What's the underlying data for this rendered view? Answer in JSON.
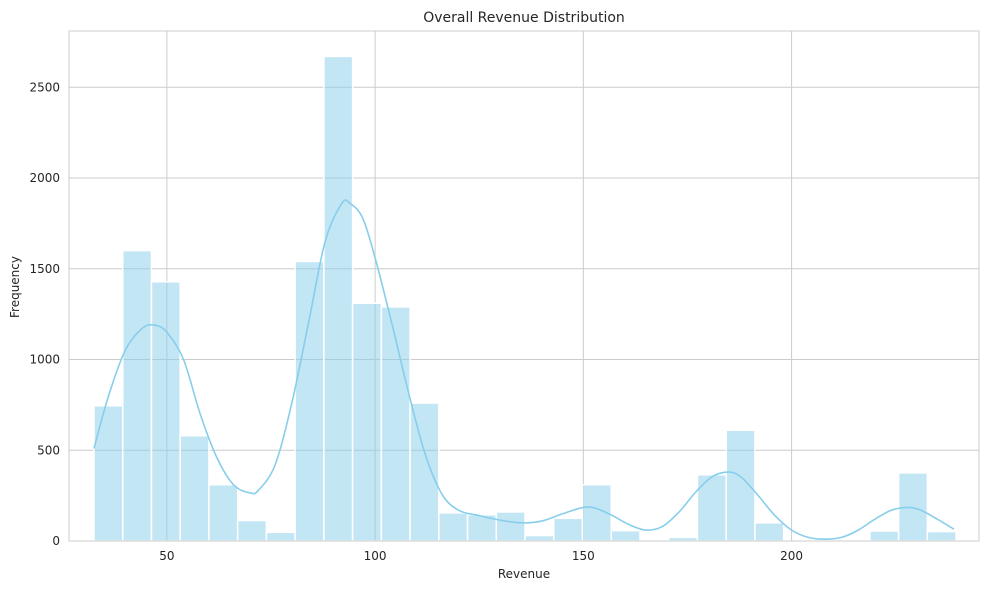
{
  "chart_data": {
    "type": "bar",
    "title": "Overall Revenue Distribution",
    "xlabel": "Revenue",
    "ylabel": "Frequency",
    "xlim": [
      26.5,
      245
    ],
    "ylim": [
      0,
      2810
    ],
    "xticks": [
      50,
      100,
      150,
      200
    ],
    "yticks": [
      0,
      500,
      1000,
      1500,
      2000,
      2500
    ],
    "grid": true,
    "bar_color": "#87CEEB",
    "bar_opacity": 0.5,
    "kde_color": "#87CEEB",
    "bins": [
      {
        "x0": 32.5,
        "x1": 39.4,
        "count": 745
      },
      {
        "x0": 39.4,
        "x1": 46.3,
        "count": 1600
      },
      {
        "x0": 46.3,
        "x1": 53.2,
        "count": 1428
      },
      {
        "x0": 53.2,
        "x1": 60.1,
        "count": 580
      },
      {
        "x0": 60.1,
        "x1": 67.0,
        "count": 310
      },
      {
        "x0": 67.0,
        "x1": 73.9,
        "count": 113
      },
      {
        "x0": 73.9,
        "x1": 80.8,
        "count": 48
      },
      {
        "x0": 80.8,
        "x1": 87.7,
        "count": 1540
      },
      {
        "x0": 87.7,
        "x1": 94.6,
        "count": 2670
      },
      {
        "x0": 94.6,
        "x1": 101.5,
        "count": 1310
      },
      {
        "x0": 101.5,
        "x1": 108.4,
        "count": 1290
      },
      {
        "x0": 108.4,
        "x1": 115.3,
        "count": 760
      },
      {
        "x0": 115.3,
        "x1": 122.2,
        "count": 155
      },
      {
        "x0": 122.2,
        "x1": 129.1,
        "count": 145
      },
      {
        "x0": 129.1,
        "x1": 136.0,
        "count": 160
      },
      {
        "x0": 136.0,
        "x1": 142.9,
        "count": 30
      },
      {
        "x0": 142.9,
        "x1": 149.8,
        "count": 125
      },
      {
        "x0": 149.8,
        "x1": 156.7,
        "count": 310
      },
      {
        "x0": 156.7,
        "x1": 163.6,
        "count": 57
      },
      {
        "x0": 163.6,
        "x1": 170.5,
        "count": 0
      },
      {
        "x0": 170.5,
        "x1": 177.4,
        "count": 20
      },
      {
        "x0": 177.4,
        "x1": 184.3,
        "count": 365
      },
      {
        "x0": 184.3,
        "x1": 191.2,
        "count": 610
      },
      {
        "x0": 191.2,
        "x1": 198.1,
        "count": 100
      },
      {
        "x0": 198.1,
        "x1": 205.0,
        "count": 0
      },
      {
        "x0": 205.0,
        "x1": 211.9,
        "count": 0
      },
      {
        "x0": 211.9,
        "x1": 218.8,
        "count": 0
      },
      {
        "x0": 218.8,
        "x1": 225.7,
        "count": 55
      },
      {
        "x0": 225.7,
        "x1": 232.6,
        "count": 375
      },
      {
        "x0": 232.6,
        "x1": 239.5,
        "count": 52
      }
    ],
    "kde": [
      [
        32.5,
        510
      ],
      [
        36,
        800
      ],
      [
        40,
        1050
      ],
      [
        44,
        1170
      ],
      [
        47,
        1190
      ],
      [
        50,
        1150
      ],
      [
        54,
        1000
      ],
      [
        58,
        700
      ],
      [
        62,
        460
      ],
      [
        66,
        310
      ],
      [
        70,
        265
      ],
      [
        72,
        280
      ],
      [
        76,
        420
      ],
      [
        80,
        760
      ],
      [
        84,
        1200
      ],
      [
        88,
        1650
      ],
      [
        92,
        1860
      ],
      [
        94,
        1860
      ],
      [
        97,
        1780
      ],
      [
        100,
        1560
      ],
      [
        104,
        1200
      ],
      [
        108,
        820
      ],
      [
        112,
        480
      ],
      [
        116,
        260
      ],
      [
        120,
        170
      ],
      [
        125,
        140
      ],
      [
        130,
        115
      ],
      [
        135,
        100
      ],
      [
        140,
        110
      ],
      [
        145,
        150
      ],
      [
        150,
        185
      ],
      [
        153,
        180
      ],
      [
        157,
        140
      ],
      [
        161,
        90
      ],
      [
        165,
        60
      ],
      [
        169,
        80
      ],
      [
        173,
        160
      ],
      [
        177,
        270
      ],
      [
        181,
        355
      ],
      [
        185,
        380
      ],
      [
        188,
        350
      ],
      [
        192,
        250
      ],
      [
        196,
        140
      ],
      [
        200,
        60
      ],
      [
        204,
        20
      ],
      [
        208,
        10
      ],
      [
        212,
        20
      ],
      [
        216,
        60
      ],
      [
        220,
        120
      ],
      [
        224,
        170
      ],
      [
        228,
        185
      ],
      [
        231,
        170
      ],
      [
        235,
        120
      ],
      [
        239,
        65
      ]
    ]
  }
}
